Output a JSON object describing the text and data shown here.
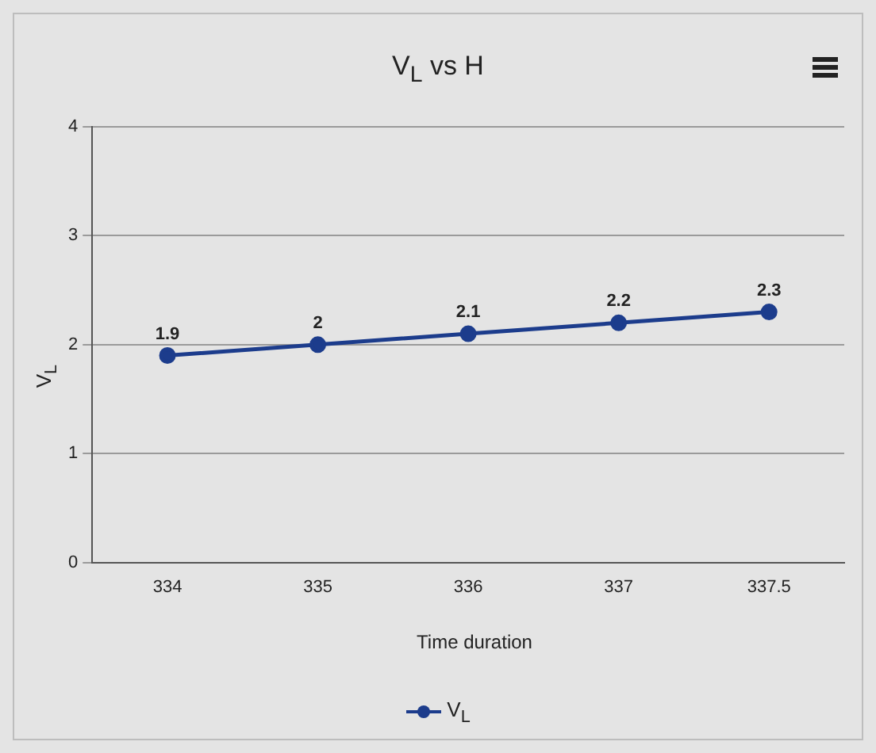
{
  "chart_data": {
    "type": "line",
    "title": "V$_{L}$ vs H",
    "xlabel": "Time duration",
    "ylabel": "V$_{L}$",
    "categories": [
      "334",
      "335",
      "336",
      "337",
      "337.5"
    ],
    "series": [
      {
        "name": "V$_{L}$",
        "color": "#1c3c8c",
        "values": [
          1.9,
          2,
          2.1,
          2.2,
          2.3
        ]
      }
    ],
    "ylim": [
      0,
      4
    ],
    "yticks": [
      0,
      1,
      2,
      3,
      4
    ],
    "grid": "y",
    "legend": "bottom",
    "marker": "circle",
    "line_style": "solid",
    "data_labels": true
  }
}
